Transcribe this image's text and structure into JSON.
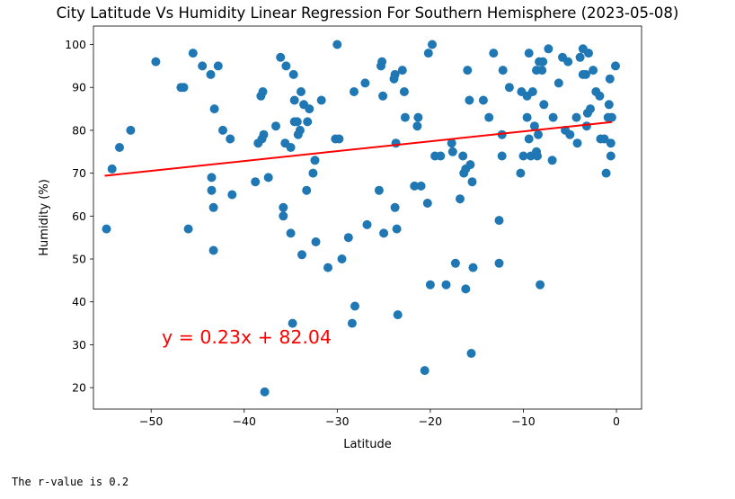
{
  "chart_data": {
    "type": "scatter",
    "title": "City Latitude Vs Humidity Linear Regression For Southern Hemisphere (2023-05-08)",
    "xlabel": "Latitude",
    "ylabel": "Humidity (%)",
    "xlim": [
      -56.2,
      2.7
    ],
    "ylim": [
      15,
      104.3
    ],
    "xticks": [
      -50,
      -40,
      -30,
      -20,
      -10,
      0
    ],
    "yticks": [
      20,
      30,
      40,
      50,
      60,
      70,
      80,
      90,
      100
    ],
    "grid": false,
    "point_color": "#1f77b4",
    "line_color": "#ff0000",
    "regression": {
      "slope": 0.23,
      "intercept": 82.04,
      "x_range": [
        -55,
        -0.5
      ]
    },
    "equation_label": "y = 0.23x + 82.04",
    "points": [
      [
        -54.8,
        57
      ],
      [
        -54.2,
        71
      ],
      [
        -53.4,
        76
      ],
      [
        -52.2,
        80
      ],
      [
        -49.5,
        96
      ],
      [
        -46.8,
        90
      ],
      [
        -46.5,
        90
      ],
      [
        -46.0,
        57
      ],
      [
        -45.5,
        98
      ],
      [
        -44.5,
        95
      ],
      [
        -43.6,
        93
      ],
      [
        -43.2,
        85
      ],
      [
        -42.8,
        95
      ],
      [
        -43.5,
        69
      ],
      [
        -43.5,
        66
      ],
      [
        -43.3,
        62
      ],
      [
        -43.3,
        52
      ],
      [
        -42.3,
        80
      ],
      [
        -41.5,
        78
      ],
      [
        -41.3,
        65
      ],
      [
        -38.8,
        68
      ],
      [
        -38.5,
        77
      ],
      [
        -38.2,
        88
      ],
      [
        -38.0,
        89
      ],
      [
        -37.9,
        79
      ],
      [
        -38.1,
        78
      ],
      [
        -37.4,
        69
      ],
      [
        -37.8,
        19
      ],
      [
        -36.6,
        81
      ],
      [
        -36.1,
        97
      ],
      [
        -35.8,
        62
      ],
      [
        -35.8,
        60
      ],
      [
        -35.5,
        95
      ],
      [
        -35.6,
        77
      ],
      [
        -35.0,
        76
      ],
      [
        -35.0,
        56
      ],
      [
        -34.8,
        35
      ],
      [
        -34.7,
        93
      ],
      [
        -34.6,
        82
      ],
      [
        -34.6,
        87
      ],
      [
        -34.3,
        82
      ],
      [
        -34.2,
        79
      ],
      [
        -34.0,
        80
      ],
      [
        -33.9,
        89
      ],
      [
        -33.8,
        51
      ],
      [
        -33.6,
        86
      ],
      [
        -33.2,
        82
      ],
      [
        -33.0,
        85
      ],
      [
        -33.3,
        66
      ],
      [
        -32.6,
        70
      ],
      [
        -32.4,
        73
      ],
      [
        -32.3,
        54
      ],
      [
        -31.7,
        87
      ],
      [
        -31.0,
        48
      ],
      [
        -30.2,
        78
      ],
      [
        -29.8,
        78
      ],
      [
        -30.0,
        100
      ],
      [
        -29.5,
        50
      ],
      [
        -28.8,
        55
      ],
      [
        -28.4,
        35
      ],
      [
        -28.2,
        89
      ],
      [
        -28.1,
        39
      ],
      [
        -27.0,
        91
      ],
      [
        -26.8,
        58
      ],
      [
        -25.5,
        66
      ],
      [
        -25.3,
        95
      ],
      [
        -25.2,
        96
      ],
      [
        -25.1,
        88
      ],
      [
        -25.0,
        56
      ],
      [
        -23.8,
        93
      ],
      [
        -23.9,
        92
      ],
      [
        -23.7,
        77
      ],
      [
        -23.8,
        62
      ],
      [
        -23.6,
        57
      ],
      [
        -23.5,
        37
      ],
      [
        -23.0,
        94
      ],
      [
        -22.8,
        89
      ],
      [
        -22.7,
        83
      ],
      [
        -21.7,
        67
      ],
      [
        -21.3,
        83
      ],
      [
        -21.4,
        81
      ],
      [
        -21.0,
        67
      ],
      [
        -20.6,
        24
      ],
      [
        -20.3,
        63
      ],
      [
        -20.2,
        98
      ],
      [
        -19.8,
        100
      ],
      [
        -20.0,
        44
      ],
      [
        -19.5,
        74
      ],
      [
        -18.9,
        74
      ],
      [
        -18.3,
        44
      ],
      [
        -17.7,
        77
      ],
      [
        -17.6,
        75
      ],
      [
        -17.3,
        49
      ],
      [
        -16.8,
        64
      ],
      [
        -16.5,
        74
      ],
      [
        -16.4,
        70
      ],
      [
        -16.2,
        71
      ],
      [
        -16.0,
        94
      ],
      [
        -16.2,
        43
      ],
      [
        -15.8,
        87
      ],
      [
        -15.7,
        72
      ],
      [
        -15.6,
        28
      ],
      [
        -15.5,
        68
      ],
      [
        -15.4,
        48
      ],
      [
        -14.3,
        87
      ],
      [
        -13.7,
        83
      ],
      [
        -13.2,
        98
      ],
      [
        -12.6,
        59
      ],
      [
        -12.6,
        49
      ],
      [
        -12.3,
        79
      ],
      [
        -12.3,
        74
      ],
      [
        -12.2,
        94
      ],
      [
        -11.5,
        90
      ],
      [
        -10.3,
        70
      ],
      [
        -10.2,
        89
      ],
      [
        -10.0,
        74
      ],
      [
        -9.6,
        83
      ],
      [
        -9.6,
        88
      ],
      [
        -9.4,
        98
      ],
      [
        -9.4,
        78
      ],
      [
        -9.2,
        74
      ],
      [
        -9.0,
        89
      ],
      [
        -8.8,
        81
      ],
      [
        -8.6,
        94
      ],
      [
        -8.6,
        75
      ],
      [
        -8.5,
        74
      ],
      [
        -8.4,
        79
      ],
      [
        -8.3,
        96
      ],
      [
        -8.2,
        44
      ],
      [
        -8.0,
        94
      ],
      [
        -7.9,
        96
      ],
      [
        -7.8,
        86
      ],
      [
        -7.3,
        99
      ],
      [
        -6.9,
        73
      ],
      [
        -6.8,
        83
      ],
      [
        -6.2,
        91
      ],
      [
        -5.8,
        97
      ],
      [
        -5.5,
        80
      ],
      [
        -5.2,
        96
      ],
      [
        -5.0,
        79
      ],
      [
        -4.3,
        83
      ],
      [
        -4.2,
        77
      ],
      [
        -3.9,
        97
      ],
      [
        -3.6,
        93
      ],
      [
        -3.6,
        99
      ],
      [
        -3.3,
        93
      ],
      [
        -3.2,
        81
      ],
      [
        -3.1,
        84
      ],
      [
        -3.0,
        98
      ],
      [
        -2.8,
        85
      ],
      [
        -2.5,
        94
      ],
      [
        -2.2,
        89
      ],
      [
        -1.8,
        88
      ],
      [
        -1.7,
        78
      ],
      [
        -1.3,
        78
      ],
      [
        -1.1,
        70
      ],
      [
        -0.9,
        83
      ],
      [
        -0.8,
        86
      ],
      [
        -0.7,
        92
      ],
      [
        -0.6,
        74
      ],
      [
        -0.6,
        77
      ],
      [
        -0.5,
        83
      ],
      [
        -0.1,
        95
      ]
    ]
  },
  "output": {
    "text": "The r-value is 0.2"
  }
}
